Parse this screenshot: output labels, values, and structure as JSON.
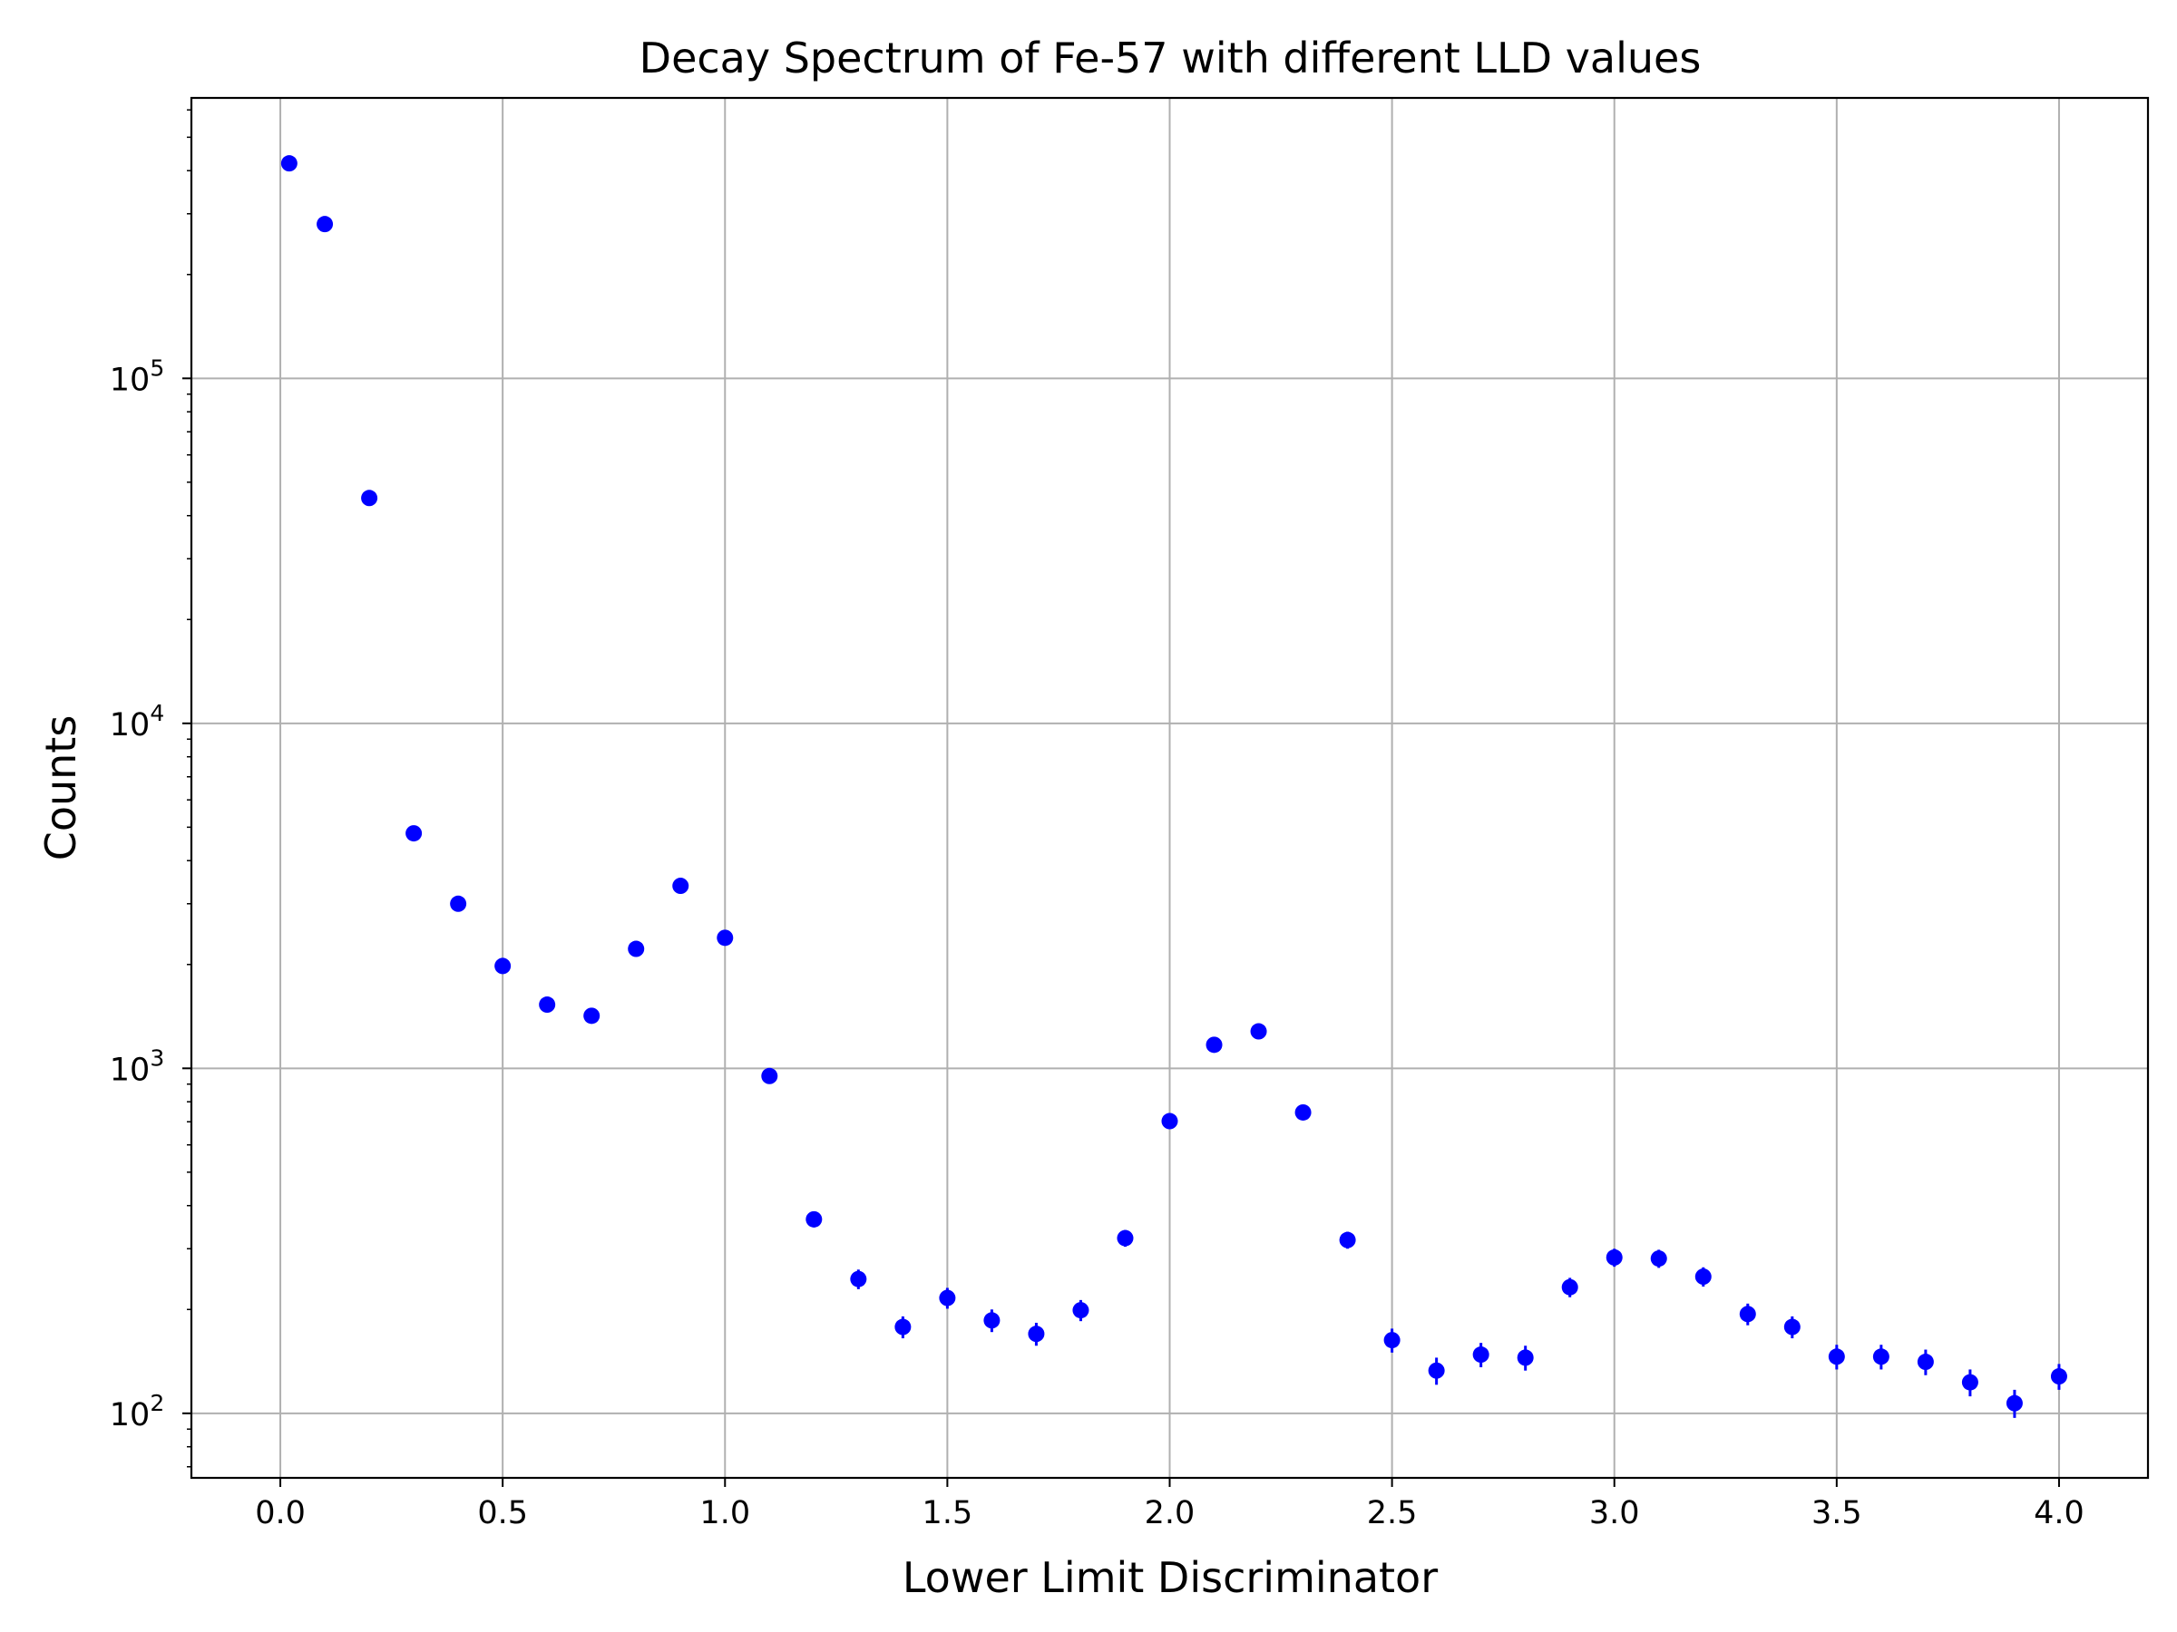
{
  "chart_data": {
    "type": "scatter",
    "title": "Decay Spectrum of Fe-57 with different LLD values",
    "xlabel": "Lower Limit Discriminator",
    "ylabel": "Counts",
    "xlim": [
      -0.2,
      4.2
    ],
    "ylim": [
      65,
      650000
    ],
    "yscale": "log",
    "grid": true,
    "x_ticks": [
      0.0,
      0.5,
      1.0,
      1.5,
      2.0,
      2.5,
      3.0,
      3.5,
      4.0
    ],
    "x_tick_labels": [
      "0.0",
      "0.5",
      "1.0",
      "1.5",
      "2.0",
      "2.5",
      "3.0",
      "3.5",
      "4.0"
    ],
    "y_ticks": [
      {
        "value": 100,
        "base": "10",
        "exp": "2"
      },
      {
        "value": 1000,
        "base": "10",
        "exp": "3"
      },
      {
        "value": 10000,
        "base": "10",
        "exp": "4"
      },
      {
        "value": 100000,
        "base": "10",
        "exp": "5"
      }
    ],
    "marker_color": "#0000ff",
    "series": [
      {
        "x": [
          0.02,
          0.1,
          0.2,
          0.3,
          0.4,
          0.5,
          0.6,
          0.7,
          0.8,
          0.9,
          1.0,
          1.1,
          1.2,
          1.3,
          1.4,
          1.5,
          1.6,
          1.7,
          1.8,
          1.9,
          2.0,
          2.1,
          2.2,
          2.3,
          2.4,
          2.5,
          2.6,
          2.7,
          2.8,
          2.9,
          3.0,
          3.1,
          3.2,
          3.3,
          3.4,
          3.5,
          3.6,
          3.7,
          3.8,
          3.9,
          4.0
        ],
        "y": [
          420000,
          280000,
          45000,
          4800,
          3000,
          1980,
          1530,
          1420,
          2220,
          3380,
          2390,
          950,
          365,
          245,
          178,
          216,
          186,
          170,
          199,
          322,
          703,
          1170,
          1280,
          745,
          318,
          163,
          133,
          148,
          145,
          232,
          283,
          281,
          249,
          194,
          178,
          146,
          146,
          141,
          123,
          107,
          128
        ],
        "yerr": [
          650,
          530,
          210,
          70,
          55,
          45,
          39,
          38,
          47,
          58,
          49,
          31,
          19,
          16,
          13,
          15,
          14,
          13,
          14,
          18,
          27,
          34,
          36,
          27,
          18,
          13,
          12,
          12,
          12,
          15,
          17,
          17,
          16,
          14,
          13,
          12,
          12,
          12,
          11,
          10,
          11
        ]
      }
    ]
  }
}
